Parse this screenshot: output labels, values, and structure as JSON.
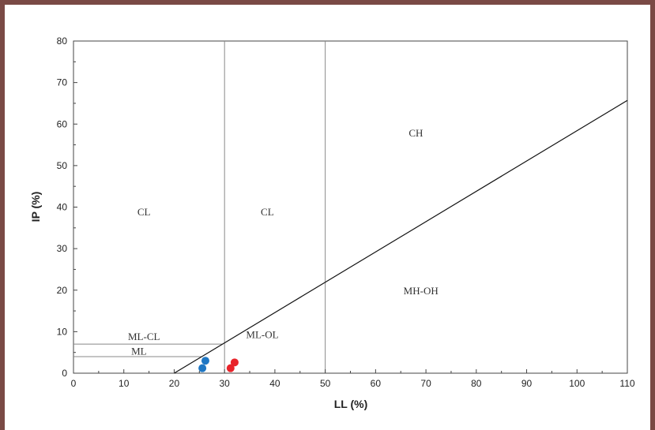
{
  "chart_data": {
    "type": "scatter",
    "xlabel": "LL (%)",
    "ylabel": "IP (%)",
    "xlim": [
      0,
      110
    ],
    "ylim": [
      0,
      80
    ],
    "x_ticks": [
      0,
      10,
      20,
      30,
      40,
      50,
      60,
      70,
      80,
      90,
      100,
      110
    ],
    "y_ticks": [
      0,
      10,
      20,
      30,
      40,
      50,
      60,
      70,
      80
    ],
    "a_line": [
      [
        20,
        0
      ],
      [
        110,
        65.7
      ]
    ],
    "vertical_lines": [
      30,
      50
    ],
    "horizontal_lines": [
      {
        "y": 7,
        "x_from": 0,
        "x_to": 29.6
      },
      {
        "y": 4,
        "x_from": 0,
        "x_to": 25.5
      }
    ],
    "region_labels": [
      {
        "text": "CL",
        "x": 14,
        "y": 38
      },
      {
        "text": "CL",
        "x": 38.5,
        "y": 38
      },
      {
        "text": "CH",
        "x": 68,
        "y": 57
      },
      {
        "text": "MH-OH",
        "x": 69,
        "y": 19
      },
      {
        "text": "ML-OL",
        "x": 37.5,
        "y": 8.5
      },
      {
        "text": "ML-CL",
        "x": 14,
        "y": 8
      },
      {
        "text": "ML",
        "x": 13,
        "y": 4.5
      }
    ],
    "series": [
      {
        "color": "#1f77c4",
        "points": [
          [
            26.2,
            3.0
          ],
          [
            25.6,
            1.2
          ]
        ]
      },
      {
        "color": "#e8232a",
        "points": [
          [
            32.0,
            2.6
          ],
          [
            31.2,
            1.2
          ]
        ]
      }
    ]
  }
}
